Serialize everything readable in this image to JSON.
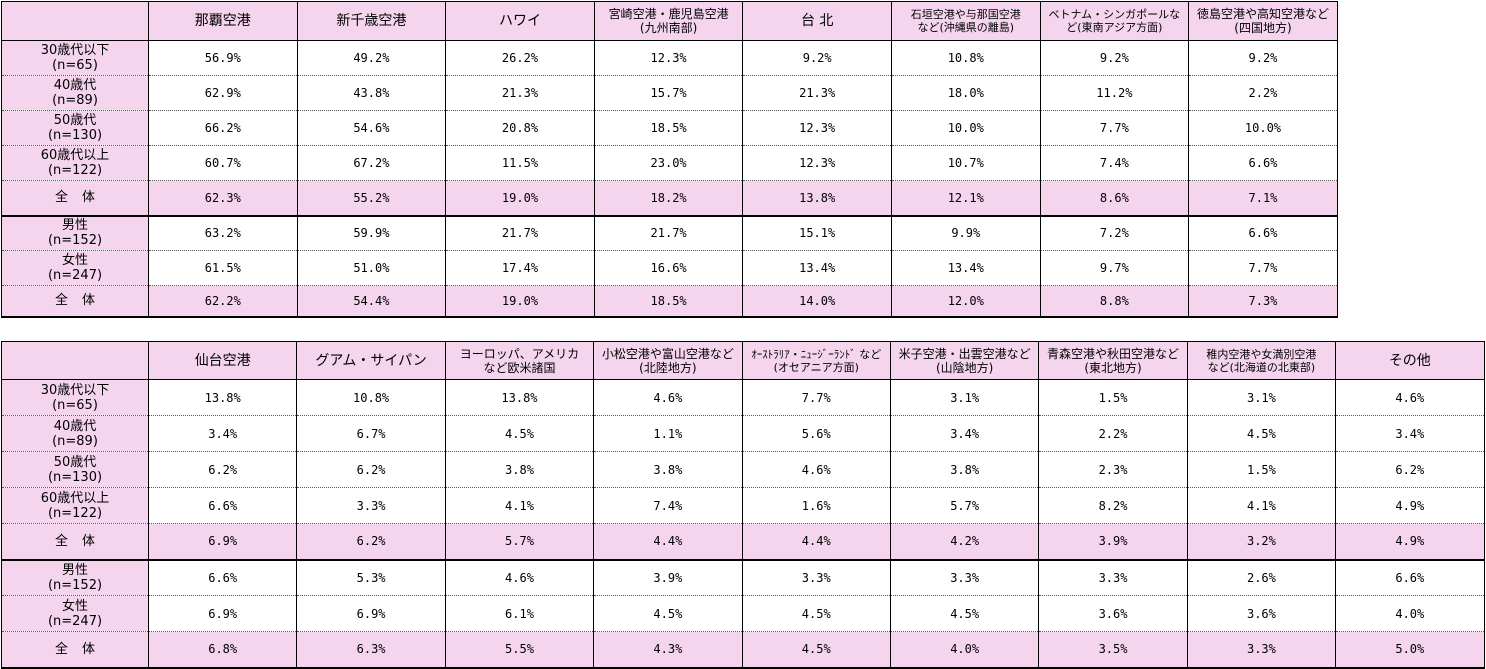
{
  "table1": {
    "columns": [
      "那覇空港",
      "新千歳空港",
      "ハワイ",
      "宮崎空港・鹿児島空港\n(九州南部)",
      "台 北",
      "石垣空港や与那国空港\nなど(沖縄県の離島)",
      "ベトナム・シンガポールな\nど(東南アジア方面)",
      "徳島空港や高知空港など\n(四国地方)"
    ],
    "rows": [
      {
        "label": "30歳代以下\n(n=65)",
        "values": [
          "56.9%",
          "49.2%",
          "26.2%",
          "12.3%",
          "9.2%",
          "10.8%",
          "9.2%",
          "9.2%"
        ]
      },
      {
        "label": "40歳代\n(n=89)",
        "values": [
          "62.9%",
          "43.8%",
          "21.3%",
          "15.7%",
          "21.3%",
          "18.0%",
          "11.2%",
          "2.2%"
        ]
      },
      {
        "label": "50歳代\n(n=130)",
        "values": [
          "66.2%",
          "54.6%",
          "20.8%",
          "18.5%",
          "12.3%",
          "10.0%",
          "7.7%",
          "10.0%"
        ]
      },
      {
        "label": "60歳代以上\n(n=122)",
        "values": [
          "60.7%",
          "67.2%",
          "11.5%",
          "23.0%",
          "12.3%",
          "10.7%",
          "7.4%",
          "6.6%"
        ]
      },
      {
        "label": "全体",
        "values": [
          "62.3%",
          "55.2%",
          "19.0%",
          "18.2%",
          "13.8%",
          "12.1%",
          "8.6%",
          "7.1%"
        ],
        "total": true
      },
      {
        "label": "男性\n(n=152)",
        "values": [
          "63.2%",
          "59.9%",
          "21.7%",
          "21.7%",
          "15.1%",
          "9.9%",
          "7.2%",
          "6.6%"
        ]
      },
      {
        "label": "女性\n(n=247)",
        "values": [
          "61.5%",
          "51.0%",
          "17.4%",
          "16.6%",
          "13.4%",
          "13.4%",
          "9.7%",
          "7.7%"
        ]
      },
      {
        "label": "全体",
        "values": [
          "62.2%",
          "54.4%",
          "19.0%",
          "18.5%",
          "14.0%",
          "12.0%",
          "8.8%",
          "7.3%"
        ],
        "total": true
      }
    ]
  },
  "table2": {
    "columns": [
      "仙台空港",
      "グアム・サイパン",
      "ヨーロッパ、アメリカ\nなど欧米諸国",
      "小松空港や富山空港など\n(北陸地方)",
      "ｵｰｽﾄﾗﾘｱ・ﾆｭｰｼﾞｰﾗﾝﾄﾞ など\n(オセアニア方面)",
      "米子空港・出雲空港など\n(山陰地方)",
      "青森空港や秋田空港など\n(東北地方)",
      "稚内空港や女満別空港\nなど(北海道の北東部)",
      "その他"
    ],
    "rows": [
      {
        "label": "30歳代以下\n(n=65)",
        "values": [
          "13.8%",
          "10.8%",
          "13.8%",
          "4.6%",
          "7.7%",
          "3.1%",
          "1.5%",
          "3.1%",
          "4.6%"
        ]
      },
      {
        "label": "40歳代\n(n=89)",
        "values": [
          "3.4%",
          "6.7%",
          "4.5%",
          "1.1%",
          "5.6%",
          "3.4%",
          "2.2%",
          "4.5%",
          "3.4%"
        ]
      },
      {
        "label": "50歳代\n(n=130)",
        "values": [
          "6.2%",
          "6.2%",
          "3.8%",
          "3.8%",
          "4.6%",
          "3.8%",
          "2.3%",
          "1.5%",
          "6.2%"
        ]
      },
      {
        "label": "60歳代以上\n(n=122)",
        "values": [
          "6.6%",
          "3.3%",
          "4.1%",
          "7.4%",
          "1.6%",
          "5.7%",
          "8.2%",
          "4.1%",
          "4.9%"
        ]
      },
      {
        "label": "全体",
        "values": [
          "6.9%",
          "6.2%",
          "5.7%",
          "4.4%",
          "4.4%",
          "4.2%",
          "3.9%",
          "3.2%",
          "4.9%"
        ],
        "total": true
      },
      {
        "label": "男性\n(n=152)",
        "values": [
          "6.6%",
          "5.3%",
          "4.6%",
          "3.9%",
          "3.3%",
          "3.3%",
          "3.3%",
          "2.6%",
          "6.6%"
        ]
      },
      {
        "label": "女性\n(n=247)",
        "values": [
          "6.9%",
          "6.9%",
          "6.1%",
          "4.5%",
          "4.5%",
          "4.5%",
          "3.6%",
          "3.6%",
          "4.0%"
        ]
      },
      {
        "label": "全体",
        "values": [
          "6.8%",
          "6.3%",
          "5.5%",
          "4.3%",
          "4.5%",
          "4.0%",
          "3.5%",
          "3.3%",
          "5.0%"
        ],
        "total": true
      }
    ]
  },
  "colors": {
    "header_fill": "#f5d5ee",
    "cell_fill": "#ffffff",
    "border": "#000000"
  }
}
